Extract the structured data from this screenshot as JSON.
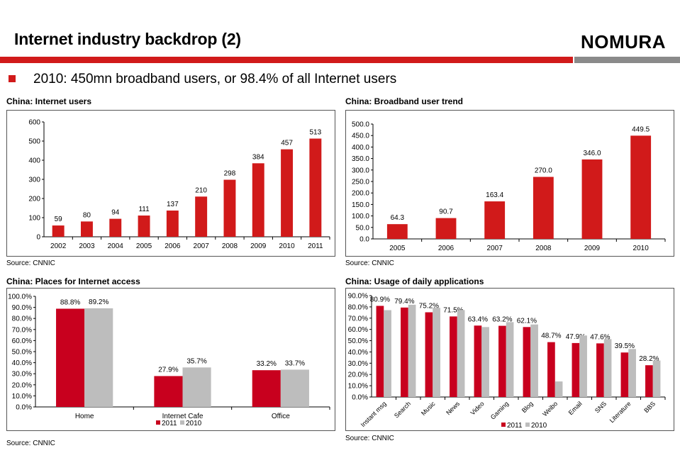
{
  "page": {
    "title": "Internet industry backdrop (2)",
    "logo": "NOMURA",
    "bullet": "2010: 450mn broadband users, or 98.4% of all Internet users",
    "colors": {
      "accent": "#d11a1a",
      "grey": "#bdbdbd",
      "logo_bar": "#8a8a8a"
    }
  },
  "panels": [
    {
      "title": "China: Internet users",
      "source": "Source: CNNIC"
    },
    {
      "title": "China: Broadband user trend",
      "source": "Source: CNNIC"
    },
    {
      "title": "China: Places for Internet access",
      "source": "Source: CNNIC"
    },
    {
      "title": "China: Usage of daily applications",
      "source": "Source: CNNIC"
    }
  ],
  "chart_data": [
    {
      "type": "bar",
      "title": "China: Internet users",
      "categories": [
        "2002",
        "2003",
        "2004",
        "2005",
        "2006",
        "2007",
        "2008",
        "2009",
        "2010",
        "2011"
      ],
      "values": [
        59,
        80,
        94,
        111,
        137,
        210,
        298,
        384,
        457,
        513
      ],
      "value_labels": [
        "59",
        "80",
        "94",
        "111",
        "137",
        "210",
        "298",
        "384",
        "457",
        "513"
      ],
      "ylim": [
        0,
        600
      ],
      "yticks": [
        "0",
        "100",
        "200",
        "300",
        "400",
        "500",
        "600"
      ],
      "grid": false,
      "color": "#d11a1a"
    },
    {
      "type": "bar",
      "title": "China: Broadband user trend",
      "categories": [
        "2005",
        "2006",
        "2007",
        "2008",
        "2009",
        "2010"
      ],
      "values": [
        64.3,
        90.7,
        163.4,
        270.0,
        346.0,
        449.5
      ],
      "value_labels": [
        "64.3",
        "90.7",
        "163.4",
        "270.0",
        "346.0",
        "449.5"
      ],
      "ylim": [
        0,
        500
      ],
      "yticks": [
        "0.0",
        "50.0",
        "100.0",
        "150.0",
        "200.0",
        "250.0",
        "300.0",
        "350.0",
        "400.0",
        "450.0",
        "500.0"
      ],
      "grid": false,
      "color": "#d11a1a"
    },
    {
      "type": "bar",
      "title": "China: Places for Internet access",
      "categories": [
        "Home",
        "Internet Cafe",
        "Office"
      ],
      "series": [
        {
          "name": "2011",
          "values": [
            88.8,
            27.9,
            33.2
          ],
          "labels": [
            "88.8%",
            "27.9%",
            "33.2%"
          ],
          "color": "#c8001e"
        },
        {
          "name": "2010",
          "values": [
            89.2,
            35.7,
            33.7
          ],
          "labels": [
            "89.2%",
            "35.7%",
            "33.7%"
          ],
          "color": "#bdbdbd"
        }
      ],
      "ylim": [
        0,
        100
      ],
      "yticks": [
        "0.0%",
        "10.0%",
        "20.0%",
        "30.0%",
        "40.0%",
        "50.0%",
        "60.0%",
        "70.0%",
        "80.0%",
        "90.0%",
        "100.0%"
      ],
      "legend": "bottom",
      "grid": false
    },
    {
      "type": "bar",
      "title": "China: Usage of daily applications",
      "categories": [
        "Instant msg",
        "Search",
        "Music",
        "News",
        "Video",
        "Gaming",
        "Blog",
        "Weibo",
        "Email",
        "SNS",
        "Literature",
        "BBS"
      ],
      "series": [
        {
          "name": "2011",
          "values": [
            80.9,
            79.4,
            75.2,
            71.5,
            63.4,
            63.2,
            62.1,
            48.7,
            47.9,
            47.6,
            39.5,
            28.2
          ],
          "labels": [
            "80.9%",
            "79.4%",
            "75.2%",
            "71.5%",
            "63.4%",
            "63.2%",
            "62.1%",
            "48.7%",
            "47.9%",
            "47.6%",
            "39.5%",
            "28.2%"
          ],
          "color": "#c8001e"
        },
        {
          "name": "2010",
          "values": [
            77.1,
            81.9,
            79.2,
            77.2,
            62.1,
            66.5,
            64.4,
            13.8,
            54.6,
            51.4,
            42.6,
            32.4
          ],
          "color": "#bdbdbd"
        }
      ],
      "ylim": [
        0,
        90
      ],
      "yticks": [
        "0.0%",
        "10.0%",
        "20.0%",
        "30.0%",
        "40.0%",
        "50.0%",
        "60.0%",
        "70.0%",
        "80.0%",
        "90.0%"
      ],
      "legend": "bottom",
      "grid": false
    }
  ]
}
